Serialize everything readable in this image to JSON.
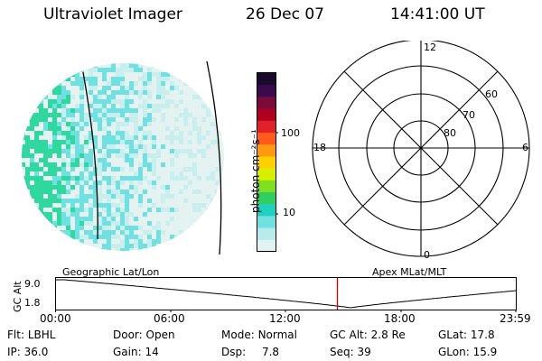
{
  "header": {
    "instrument": "Ultraviolet Imager",
    "date": "26 Dec 07",
    "time": "14:41:00 UT"
  },
  "colorbar": {
    "unit_label": "photon cm⁻²s⁻¹",
    "ticks": [
      "100",
      "10"
    ],
    "colors": [
      "#1a0a2e",
      "#3b0a4a",
      "#7a0a3a",
      "#b00020",
      "#e0202a",
      "#ff5a1a",
      "#ff9a10",
      "#ffd000",
      "#d8f000",
      "#80e020",
      "#30d060",
      "#20d0c0",
      "#70e0e0",
      "#b8ecec",
      "#e2f2f2"
    ]
  },
  "polar_plot": {
    "labels": {
      "top": "12",
      "bottom": "0",
      "left": "18",
      "right": "6",
      "lat_60": "60",
      "lat_70": "70",
      "lat_80": "80"
    }
  },
  "projection_labels": {
    "left": "Geographic Lat/Lon",
    "right": "Apex MLat/MLT"
  },
  "altitude_plot": {
    "axis_label": "GC Alt",
    "y_ticks": [
      "9.0",
      "1.8"
    ],
    "x_ticks": [
      "00:00",
      "06:00",
      "12:00",
      "18:00",
      "23:59"
    ],
    "current_time_fraction": 0.6118,
    "line_color": "#000000",
    "marker_color": "#cc0000"
  },
  "info": {
    "row1": [
      {
        "label": "Flt:",
        "value": "LBHL"
      },
      {
        "label": "Door:",
        "value": "Open"
      },
      {
        "label": "Mode:",
        "value": "Normal"
      },
      {
        "label": "GC Alt:",
        "value": "2.8 Re"
      },
      {
        "label": "GLat:",
        "value": "17.8"
      }
    ],
    "row2": [
      {
        "label": "IP:",
        "value": "36.0"
      },
      {
        "label": "Gain:",
        "value": "14"
      },
      {
        "label": "Dsp:",
        "value": "7.8"
      },
      {
        "label": "Seq:",
        "value": "39"
      },
      {
        "label": "GLon:",
        "value": "15.9"
      }
    ]
  },
  "image_colors": {
    "high": "#30d8a0",
    "mid": "#70e0e0",
    "low": "#c8eeee",
    "bg": "#e4f2f2"
  }
}
